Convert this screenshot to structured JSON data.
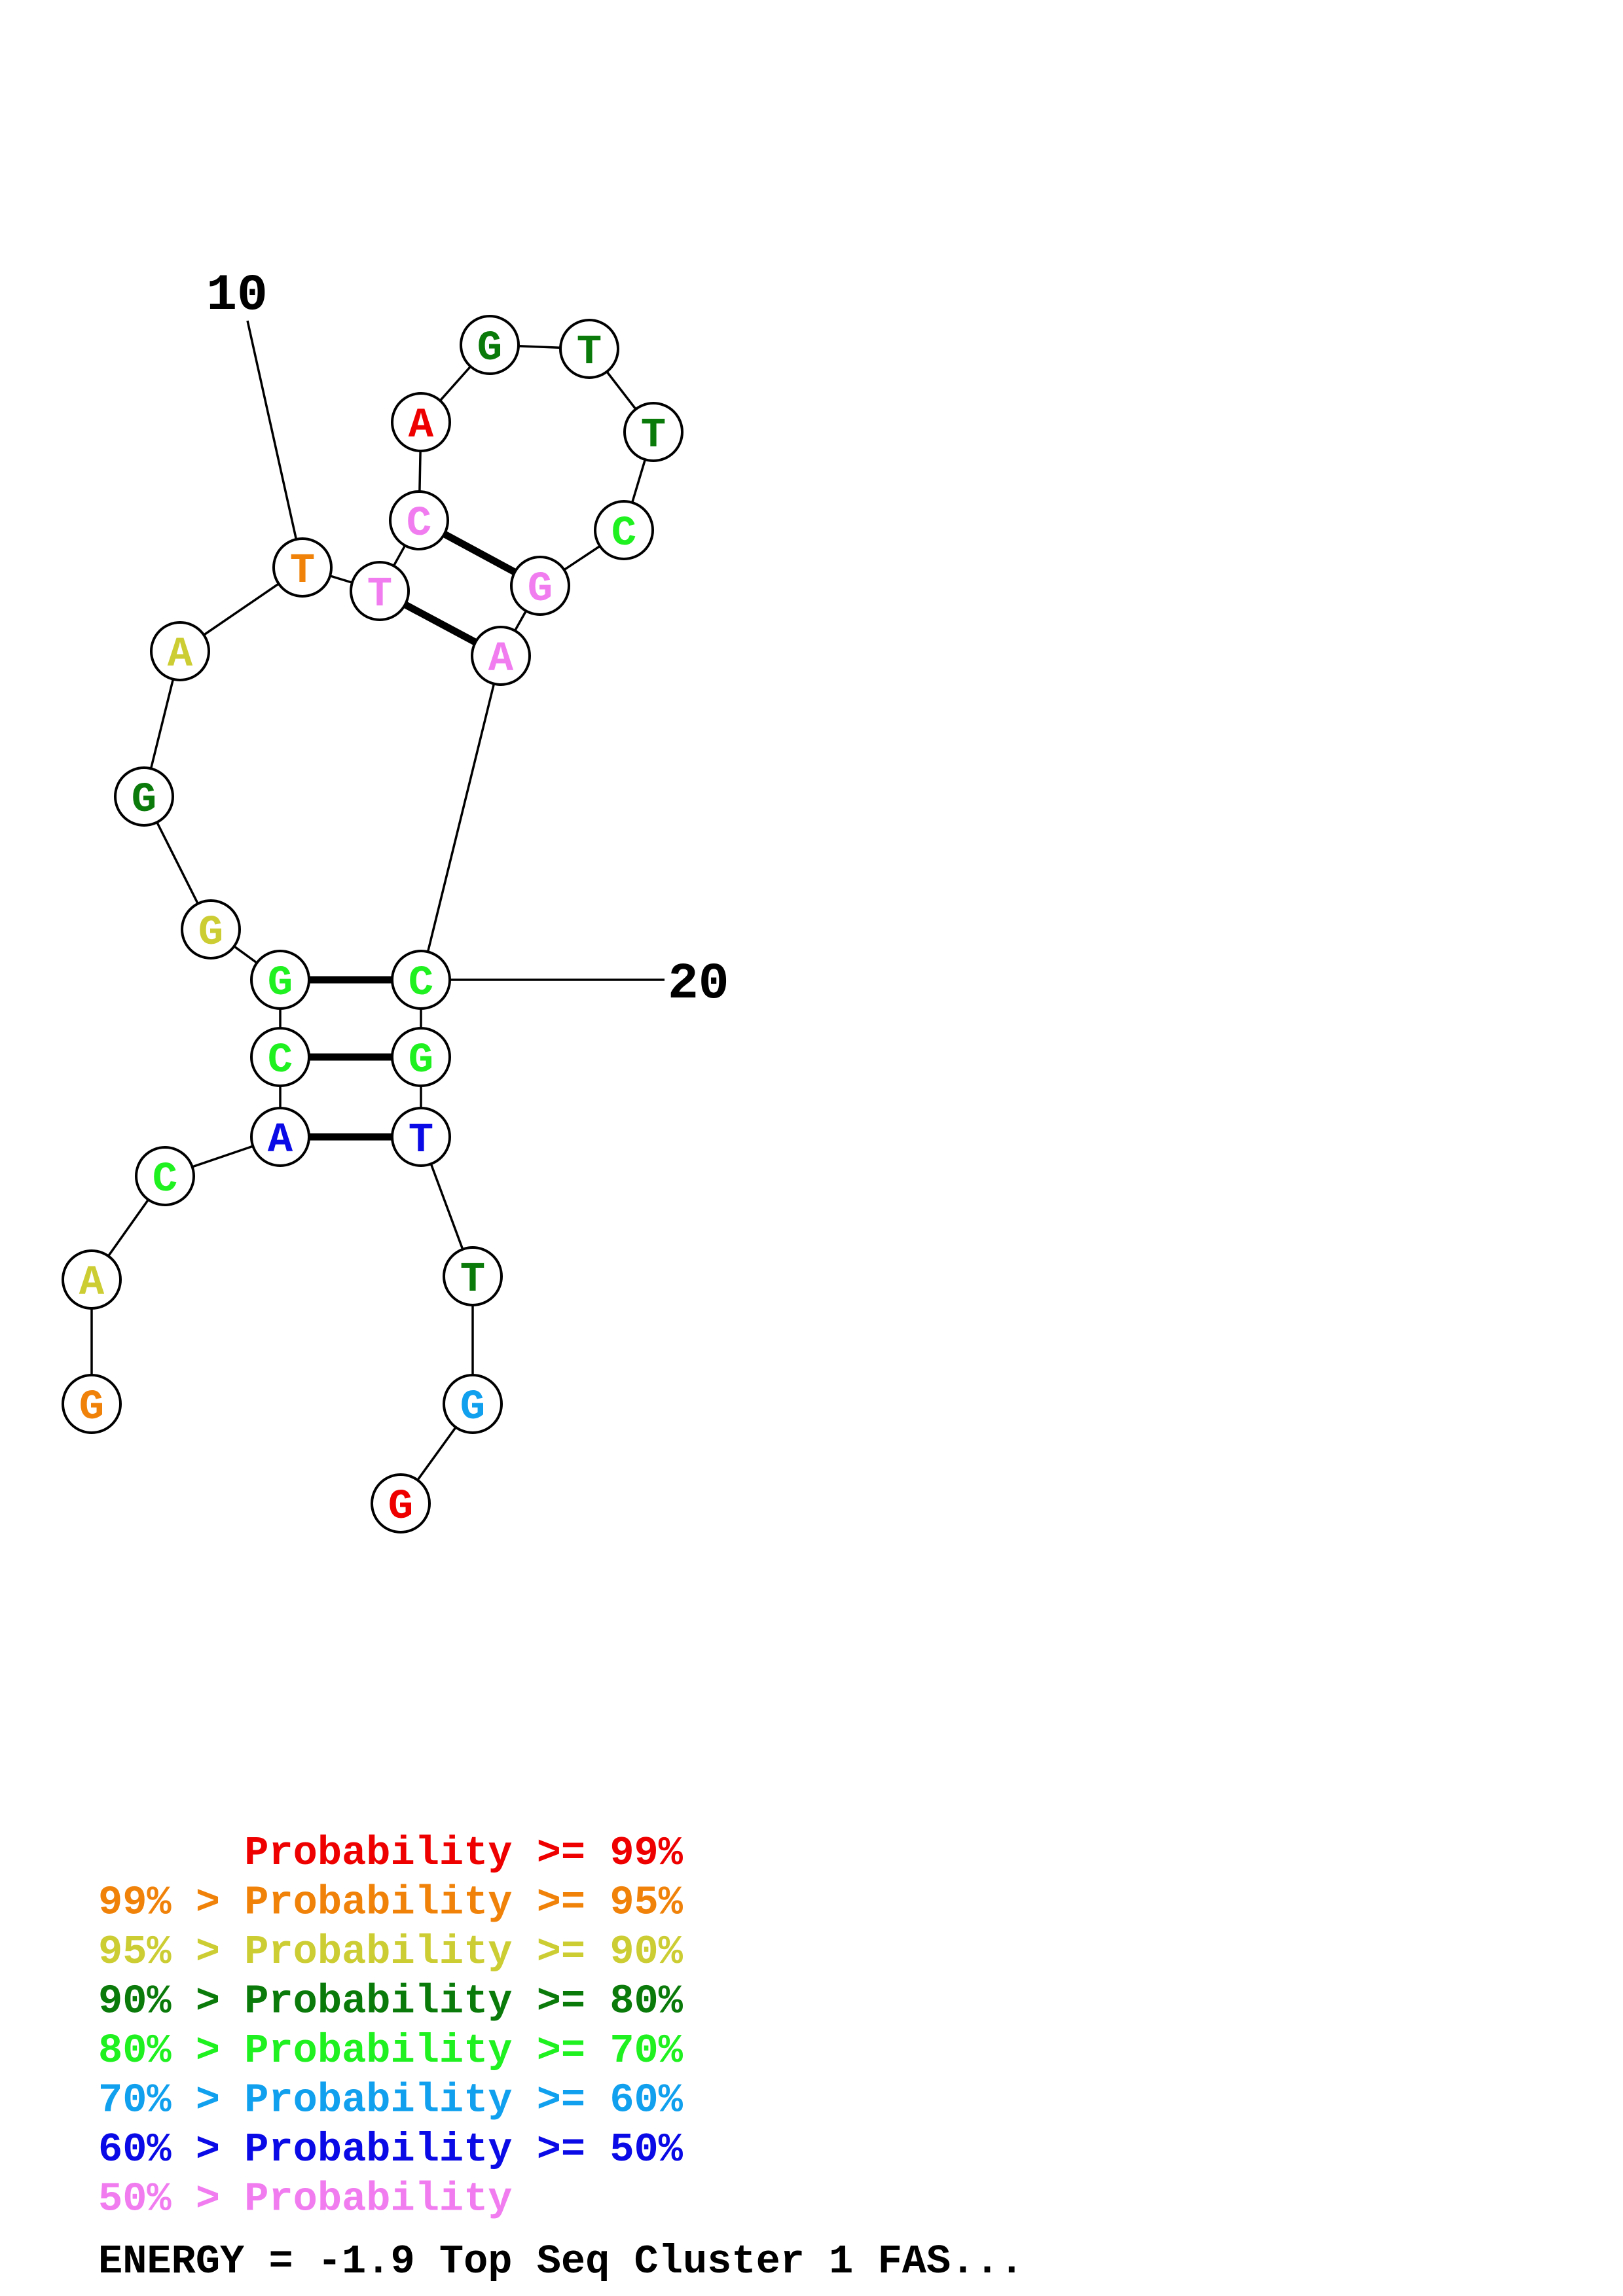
{
  "colors": {
    "red": "#ee0000",
    "orange": "#f0820a",
    "yellow": "#cccc33",
    "darkgreen": "#0a7a0a",
    "green": "#1ff01f",
    "cyan": "#10a0ee",
    "blue": "#0a0ae6",
    "pink": "#f07cf0"
  },
  "bases": [
    {
      "letter": "G",
      "color": "orange"
    },
    {
      "letter": "A",
      "color": "yellow"
    },
    {
      "letter": "C",
      "color": "green"
    },
    {
      "letter": "A",
      "color": "blue"
    },
    {
      "letter": "C",
      "color": "green"
    },
    {
      "letter": "G",
      "color": "green"
    },
    {
      "letter": "G",
      "color": "yellow"
    },
    {
      "letter": "G",
      "color": "darkgreen"
    },
    {
      "letter": "A",
      "color": "yellow"
    },
    {
      "letter": "T",
      "color": "orange"
    },
    {
      "letter": "T",
      "color": "pink"
    },
    {
      "letter": "C",
      "color": "pink"
    },
    {
      "letter": "A",
      "color": "red"
    },
    {
      "letter": "G",
      "color": "darkgreen"
    },
    {
      "letter": "T",
      "color": "darkgreen"
    },
    {
      "letter": "T",
      "color": "darkgreen"
    },
    {
      "letter": "C",
      "color": "green"
    },
    {
      "letter": "G",
      "color": "pink"
    },
    {
      "letter": "A",
      "color": "pink"
    },
    {
      "letter": "C",
      "color": "green"
    },
    {
      "letter": "G",
      "color": "green"
    },
    {
      "letter": "T",
      "color": "blue"
    },
    {
      "letter": "T",
      "color": "darkgreen"
    },
    {
      "letter": "G",
      "color": "cyan"
    },
    {
      "letter": "G",
      "color": "red"
    }
  ],
  "pairs": [
    [
      4,
      22
    ],
    [
      5,
      21
    ],
    [
      6,
      20
    ],
    [
      11,
      19
    ],
    [
      12,
      18
    ]
  ],
  "position_labels": [
    {
      "text": "10",
      "base": 10
    },
    {
      "text": "20",
      "base": 20
    }
  ],
  "legend": [
    {
      "prefix": "",
      "body": "Probability >= 99%",
      "color": "red"
    },
    {
      "prefix": "99% > ",
      "body": "Probability >= 95%",
      "color": "orange"
    },
    {
      "prefix": "95% > ",
      "body": "Probability >= 90%",
      "color": "yellow"
    },
    {
      "prefix": "90% > ",
      "body": "Probability >= 80%",
      "color": "darkgreen"
    },
    {
      "prefix": "80% > ",
      "body": "Probability >= 70%",
      "color": "green"
    },
    {
      "prefix": "70% > ",
      "body": "Probability >= 60%",
      "color": "cyan"
    },
    {
      "prefix": "60% > ",
      "body": "Probability >= 50%",
      "color": "blue"
    },
    {
      "prefix": "50% > ",
      "body": "Probability",
      "color": "pink"
    }
  ],
  "footer": "ENERGY = -1.9  Top Seq Cluster 1 FAS..."
}
